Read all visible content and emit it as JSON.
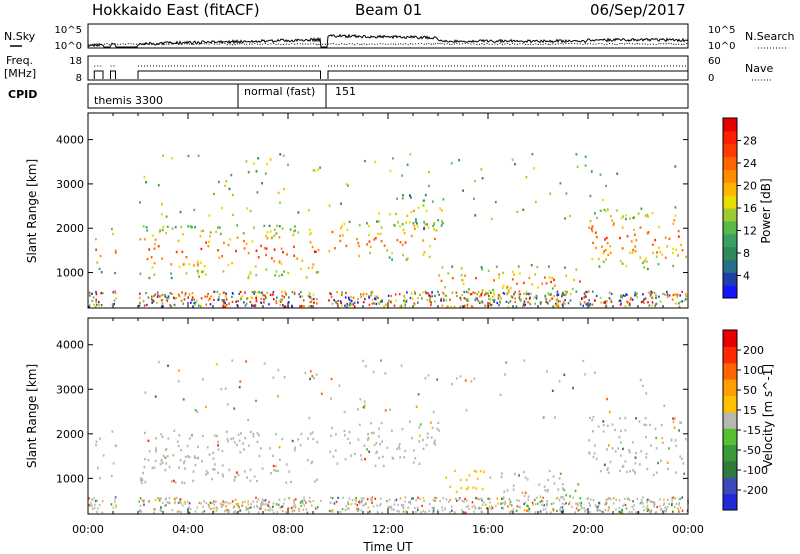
{
  "header": {
    "station": "Hokkaido East (fitACF)",
    "beam": "Beam 01",
    "date": "06/Sep/2017"
  },
  "nsky_panel": {
    "left_label": "N.Sky",
    "right_label": "N.Search",
    "left_ticks": [
      "10^5",
      "10^0"
    ],
    "right_ticks": [
      "10^5",
      "10^0"
    ]
  },
  "freq_panel": {
    "left_label_1": "Freq.",
    "left_label_2": "[MHz]",
    "right_label": "Nave",
    "left_ticks": [
      "18",
      "8"
    ],
    "right_ticks": [
      "60",
      "0"
    ]
  },
  "cpid_panel": {
    "label": "CPID",
    "modes": [
      {
        "name": "themis 3300",
        "start_hour": 0.0
      },
      {
        "name": "normal (fast)",
        "start_hour": 6.0
      },
      {
        "name": "151",
        "start_hour": 9.5
      }
    ]
  },
  "chart_data": [
    {
      "type": "heatmap",
      "variable": "Power",
      "ylabel": "Slant Range [km]",
      "xlabel": "",
      "xlim": [
        0,
        24
      ],
      "ylim": [
        200,
        4600
      ],
      "yticks": [
        1000,
        2000,
        3000,
        4000
      ],
      "colorbar": {
        "label": "Power [dB]",
        "range": [
          0,
          32
        ],
        "ticks": [
          "4",
          "8",
          "12",
          "16",
          "20",
          "24",
          "28"
        ],
        "colors": [
          "#1414ff",
          "#2040a8",
          "#28708a",
          "#2e8a5a",
          "#3aa060",
          "#58b848",
          "#9ccc30",
          "#e8dc00",
          "#ffb400",
          "#ff8c00",
          "#ff6400",
          "#ff3c00",
          "#ff1e00",
          "#e80000"
        ]
      },
      "echo_regions": [
        {
          "t0": 0.25,
          "t1": 0.6,
          "r0": 1000,
          "r1": 2000,
          "level": 20
        },
        {
          "t0": 0.9,
          "t1": 1.1,
          "r0": 900,
          "r1": 2200,
          "level": 20
        },
        {
          "t0": 2.0,
          "t1": 9.2,
          "r0": 900,
          "r1": 2100,
          "level": 22
        },
        {
          "t0": 8.6,
          "t1": 9.3,
          "r0": 3200,
          "r1": 3500,
          "level": 14
        },
        {
          "t0": 9.6,
          "t1": 14.0,
          "r0": 1300,
          "r1": 2200,
          "level": 22
        },
        {
          "t0": 12.0,
          "t1": 14.2,
          "r0": 2000,
          "r1": 2800,
          "level": 16
        },
        {
          "t0": 14.0,
          "t1": 19.8,
          "r0": 500,
          "r1": 1200,
          "level": 20
        },
        {
          "t0": 20.0,
          "t1": 23.9,
          "r0": 1100,
          "r1": 2500,
          "level": 22
        }
      ]
    },
    {
      "type": "heatmap",
      "variable": "Velocity",
      "ylabel": "Slant Range [km]",
      "xlabel": "Time UT",
      "xlim": [
        0,
        24
      ],
      "ylim": [
        200,
        4600
      ],
      "yticks": [
        1000,
        2000,
        3000,
        4000
      ],
      "xticks": [
        "00:00",
        "04:00",
        "08:00",
        "12:00",
        "16:00",
        "20:00",
        "00:00"
      ],
      "colorbar": {
        "label": "Velocity [m s^-1]",
        "range": [
          -250,
          250
        ],
        "ticks": [
          "200",
          "100",
          "50",
          "15",
          "-15",
          "-50",
          "-100",
          "-200"
        ],
        "colors": [
          "#1e2ad8",
          "#3a4ab8",
          "#2e7a3a",
          "#3a9a3a",
          "#58c030",
          "#b8b8b0",
          "#ffc000",
          "#ffa000",
          "#ff6400",
          "#ff2800",
          "#e80000"
        ]
      },
      "echo_regions": [
        {
          "t0": 0.25,
          "t1": 0.6,
          "r0": 1000,
          "r1": 2000,
          "level": 0
        },
        {
          "t0": 0.9,
          "t1": 1.1,
          "r0": 900,
          "r1": 2200,
          "level": 0
        },
        {
          "t0": 2.0,
          "t1": 9.2,
          "r0": 900,
          "r1": 2100,
          "level": 0
        },
        {
          "t0": 8.6,
          "t1": 9.3,
          "r0": 3200,
          "r1": 3500,
          "level": -20
        },
        {
          "t0": 9.6,
          "t1": 14.0,
          "r0": 1300,
          "r1": 2200,
          "level": 0
        },
        {
          "t0": 14.0,
          "t1": 16.0,
          "r0": 700,
          "r1": 1200,
          "level": 60
        },
        {
          "t0": 16.0,
          "t1": 19.0,
          "r0": 600,
          "r1": 1200,
          "level": 0
        },
        {
          "t0": 19.0,
          "t1": 19.8,
          "r0": 500,
          "r1": 900,
          "level": -30
        },
        {
          "t0": 20.0,
          "t1": 23.9,
          "r0": 1100,
          "r1": 2400,
          "level": 0
        }
      ]
    }
  ]
}
